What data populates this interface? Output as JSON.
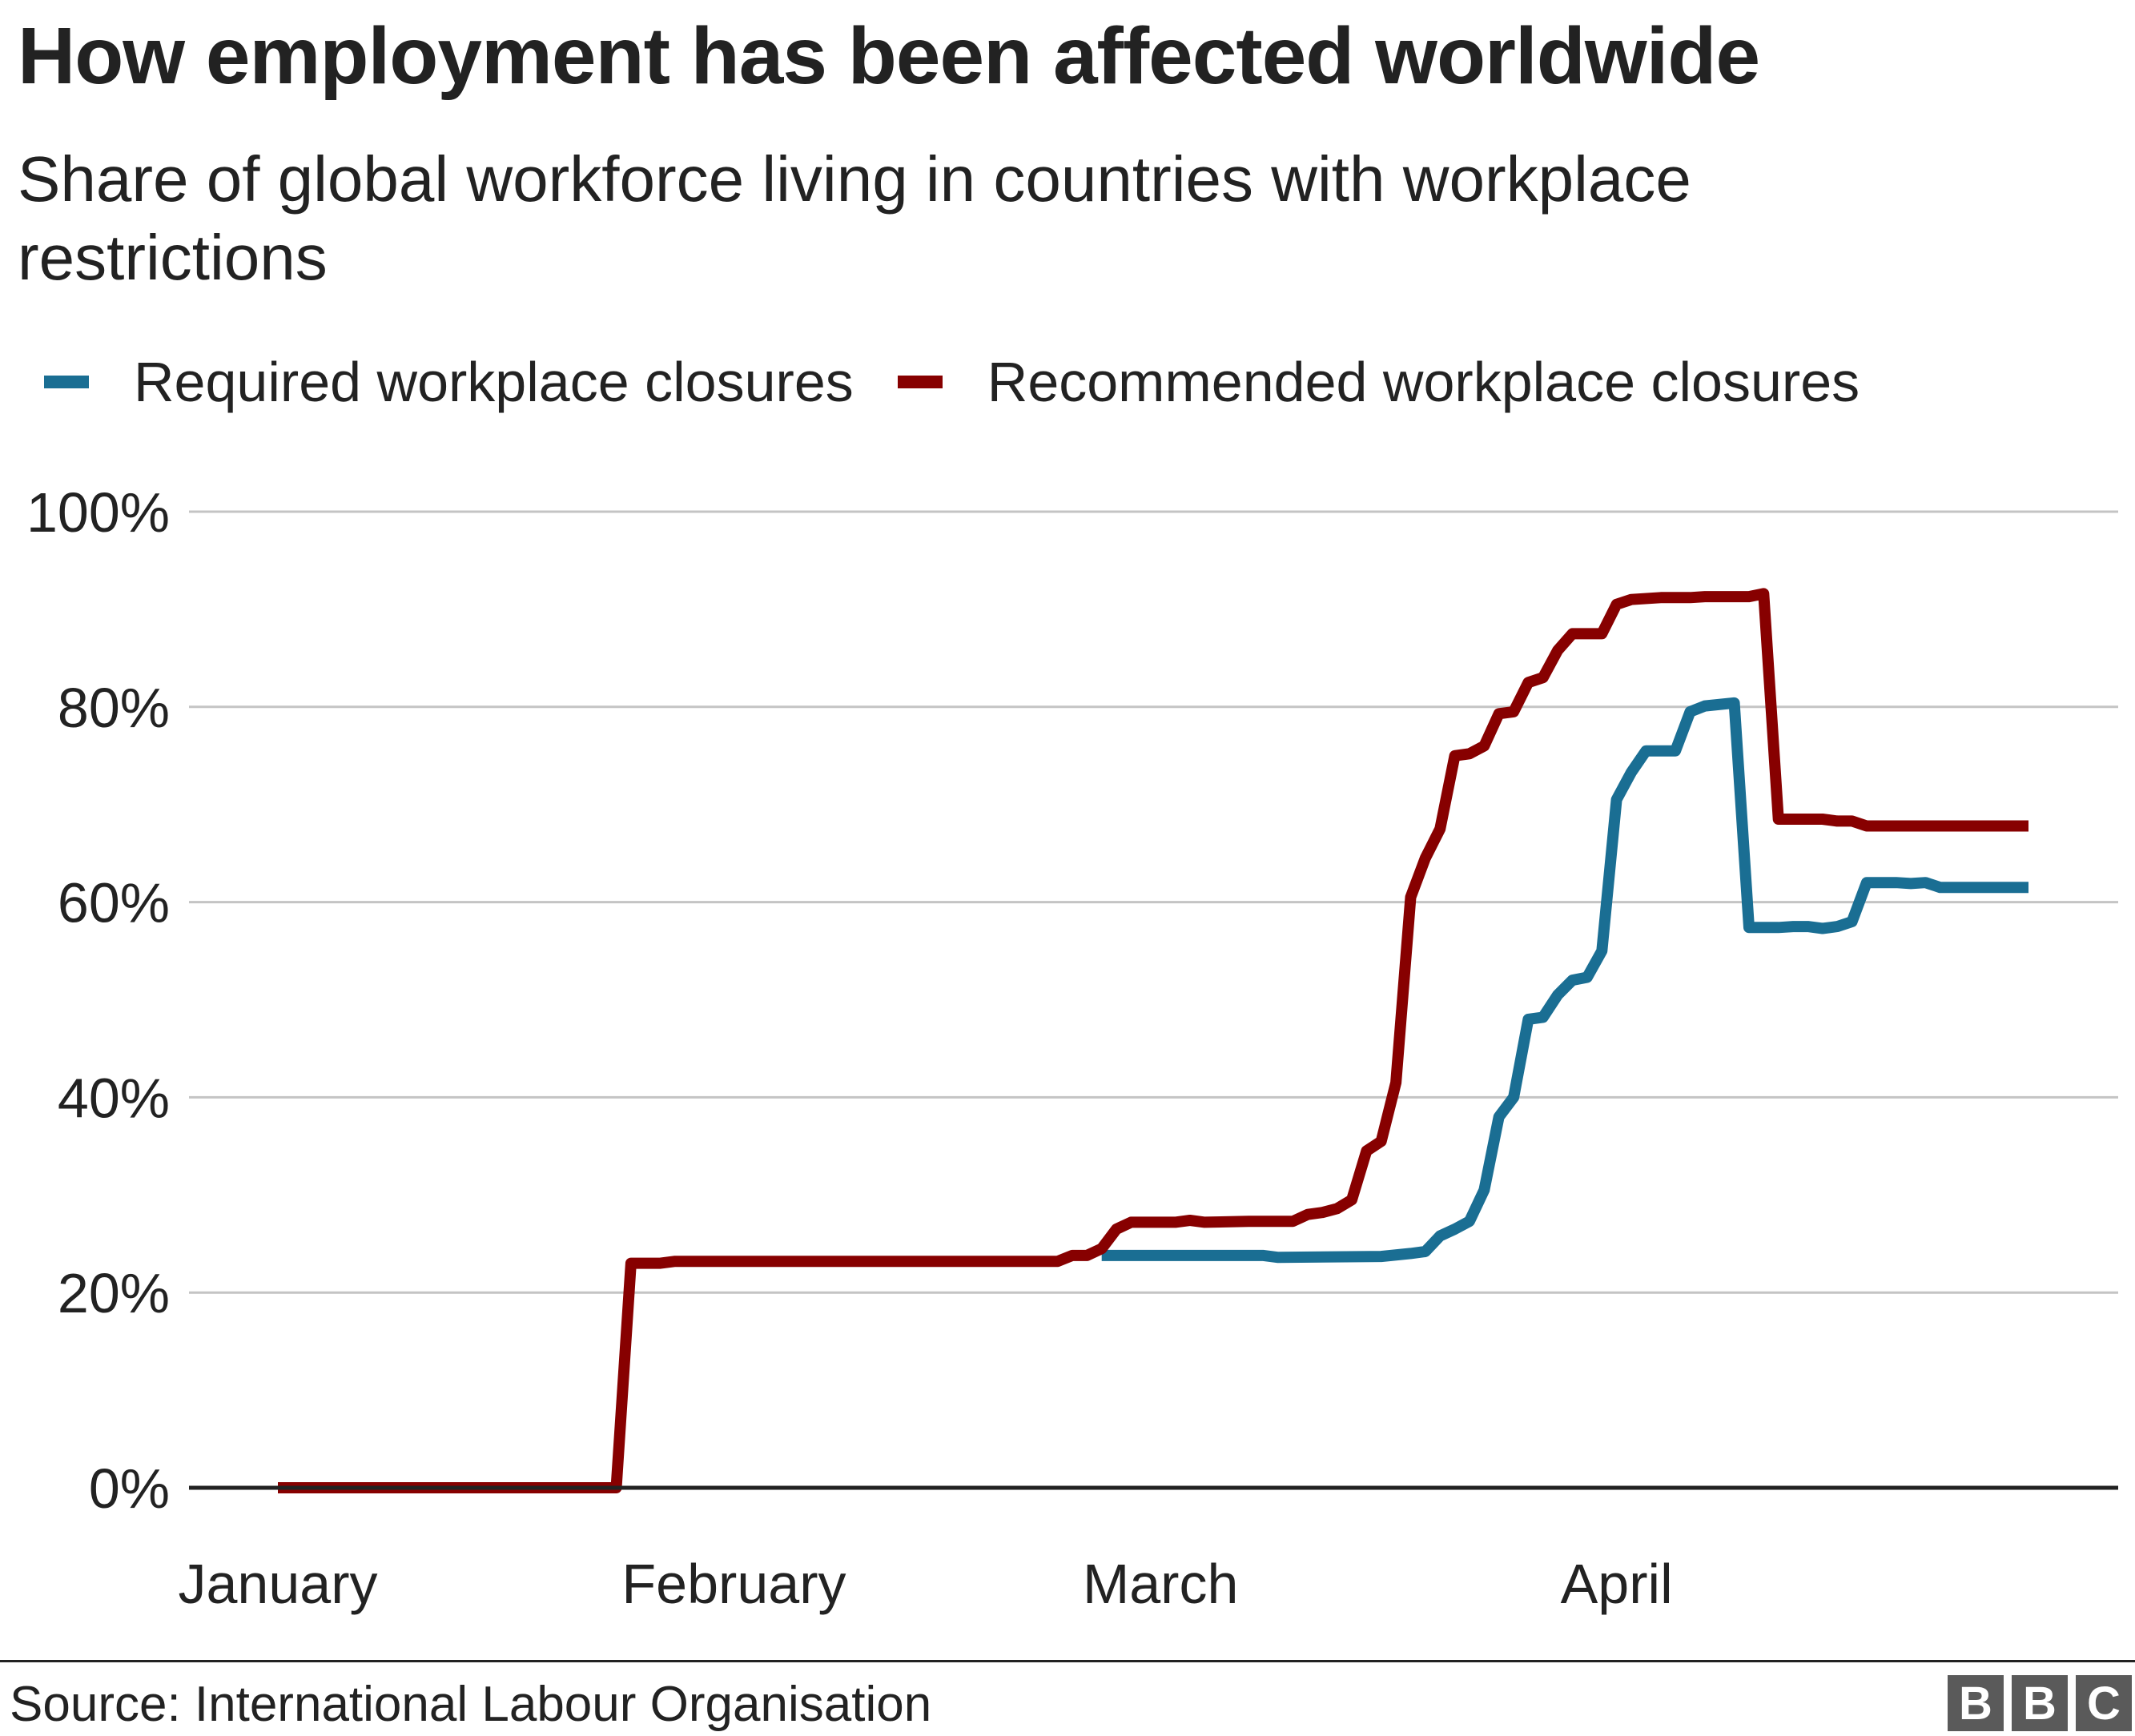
{
  "header": {
    "title": "How employment has been affected worldwide",
    "subtitle": "Share of global workforce living in countries with workplace restrictions"
  },
  "colors": {
    "required": "#1a6e93",
    "recommended": "#870000",
    "grid": "#c4c4c4",
    "baseline": "#222222",
    "text": "#222222"
  },
  "chart_data": {
    "type": "line",
    "title": "How employment has been affected worldwide",
    "subtitle": "Share of global workforce living in countries with workplace restrictions",
    "x_axis": {
      "type": "date",
      "range": [
        "2020-01-01",
        "2020-04-29"
      ],
      "ticks": [
        {
          "date": "2020-01-01",
          "label": "January"
        },
        {
          "date": "2020-02-01",
          "label": "February"
        },
        {
          "date": "2020-03-01",
          "label": "March"
        },
        {
          "date": "2020-04-01",
          "label": "April"
        }
      ]
    },
    "y_axis": {
      "range": [
        0,
        100
      ],
      "ticks": [
        0,
        20,
        40,
        60,
        80,
        100
      ],
      "tick_labels": [
        "0%",
        "20%",
        "40%",
        "60%",
        "80%",
        "100%"
      ]
    },
    "grid": true,
    "legend": "top-left",
    "series": [
      {
        "name": "Required workplace closures",
        "color": "#1a6e93",
        "points": [
          [
            "2020-02-26",
            23.8
          ],
          [
            "2020-03-08",
            23.8
          ],
          [
            "2020-03-09",
            23.6
          ],
          [
            "2020-03-16",
            23.7
          ],
          [
            "2020-03-18",
            24.0
          ],
          [
            "2020-03-19",
            24.2
          ],
          [
            "2020-03-20",
            25.8
          ],
          [
            "2020-03-21",
            26.5
          ],
          [
            "2020-03-22",
            27.3
          ],
          [
            "2020-03-23",
            30.5
          ],
          [
            "2020-03-24",
            38.0
          ],
          [
            "2020-03-25",
            40.0
          ],
          [
            "2020-03-26",
            48.0
          ],
          [
            "2020-03-27",
            48.2
          ],
          [
            "2020-03-28",
            50.5
          ],
          [
            "2020-03-29",
            52.0
          ],
          [
            "2020-03-30",
            52.3
          ],
          [
            "2020-03-31",
            55.0
          ],
          [
            "2020-04-01",
            70.5
          ],
          [
            "2020-04-02",
            73.3
          ],
          [
            "2020-04-03",
            75.5
          ],
          [
            "2020-04-05",
            75.5
          ],
          [
            "2020-04-06",
            79.5
          ],
          [
            "2020-04-07",
            80.1
          ],
          [
            "2020-04-09",
            80.4
          ],
          [
            "2020-04-10",
            57.4
          ],
          [
            "2020-04-12",
            57.4
          ],
          [
            "2020-04-13",
            57.5
          ],
          [
            "2020-04-14",
            57.5
          ],
          [
            "2020-04-15",
            57.3
          ],
          [
            "2020-04-16",
            57.5
          ],
          [
            "2020-04-17",
            58.0
          ],
          [
            "2020-04-18",
            62.0
          ],
          [
            "2020-04-20",
            62.0
          ],
          [
            "2020-04-21",
            61.9
          ],
          [
            "2020-04-22",
            62.0
          ],
          [
            "2020-04-23",
            61.5
          ],
          [
            "2020-04-29",
            61.5
          ]
        ]
      },
      {
        "name": "Recommended workplace closures",
        "color": "#870000",
        "points": [
          [
            "2020-01-01",
            0
          ],
          [
            "2020-01-24",
            0
          ],
          [
            "2020-01-25",
            23.0
          ],
          [
            "2020-01-27",
            23.0
          ],
          [
            "2020-01-28",
            23.2
          ],
          [
            "2020-02-23",
            23.2
          ],
          [
            "2020-02-24",
            23.8
          ],
          [
            "2020-02-25",
            23.8
          ],
          [
            "2020-02-26",
            24.5
          ],
          [
            "2020-02-27",
            26.5
          ],
          [
            "2020-02-28",
            27.2
          ],
          [
            "2020-03-02",
            27.2
          ],
          [
            "2020-03-03",
            27.4
          ],
          [
            "2020-03-04",
            27.2
          ],
          [
            "2020-03-07",
            27.3
          ],
          [
            "2020-03-10",
            27.3
          ],
          [
            "2020-03-11",
            28.0
          ],
          [
            "2020-03-12",
            28.2
          ],
          [
            "2020-03-13",
            28.6
          ],
          [
            "2020-03-14",
            29.5
          ],
          [
            "2020-03-15",
            34.5
          ],
          [
            "2020-03-16",
            35.5
          ],
          [
            "2020-03-17",
            41.5
          ],
          [
            "2020-03-18",
            60.5
          ],
          [
            "2020-03-19",
            64.5
          ],
          [
            "2020-03-20",
            67.5
          ],
          [
            "2020-03-21",
            75.0
          ],
          [
            "2020-03-22",
            75.2
          ],
          [
            "2020-03-23",
            76.0
          ],
          [
            "2020-03-24",
            79.3
          ],
          [
            "2020-03-25",
            79.5
          ],
          [
            "2020-03-26",
            82.5
          ],
          [
            "2020-03-27",
            83.0
          ],
          [
            "2020-03-28",
            85.8
          ],
          [
            "2020-03-29",
            87.5
          ],
          [
            "2020-03-31",
            87.5
          ],
          [
            "2020-04-01",
            90.5
          ],
          [
            "2020-04-02",
            91.0
          ],
          [
            "2020-04-04",
            91.2
          ],
          [
            "2020-04-06",
            91.2
          ],
          [
            "2020-04-07",
            91.3
          ],
          [
            "2020-04-10",
            91.3
          ],
          [
            "2020-04-11",
            91.6
          ],
          [
            "2020-04-12",
            68.5
          ],
          [
            "2020-04-15",
            68.5
          ],
          [
            "2020-04-16",
            68.3
          ],
          [
            "2020-04-17",
            68.3
          ],
          [
            "2020-04-18",
            67.8
          ],
          [
            "2020-04-19",
            67.8
          ],
          [
            "2020-04-29",
            67.8
          ]
        ]
      }
    ]
  },
  "footer": {
    "source": "Source: International Labour Organisation",
    "logo_letters": [
      "B",
      "B",
      "C"
    ]
  }
}
